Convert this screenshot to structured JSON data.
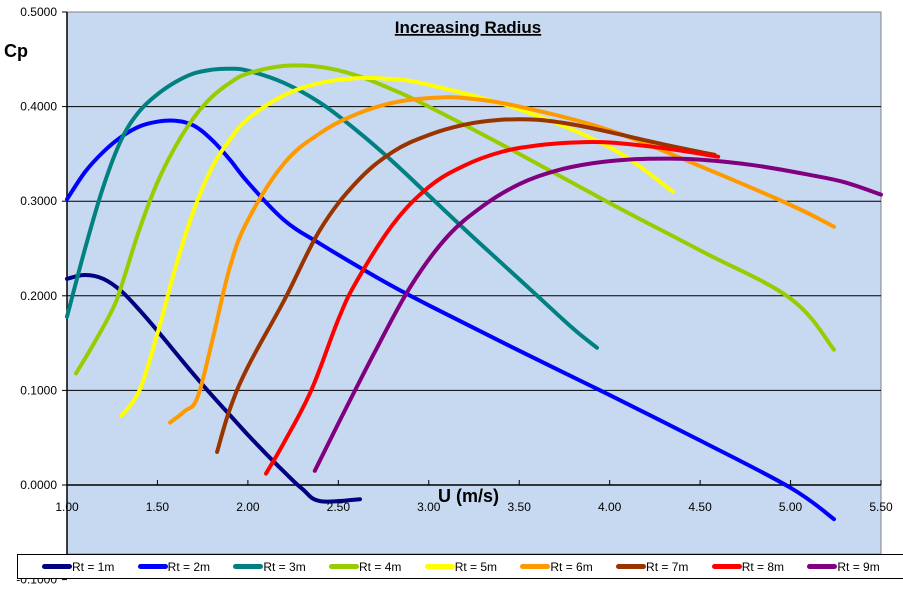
{
  "chart_data": {
    "type": "line",
    "title": "Increasing Radius",
    "xlabel": "U (m/s)",
    "ylabel": "Cp",
    "xlim": [
      1.0,
      5.5
    ],
    "ylim": [
      -0.1,
      0.5
    ],
    "x_ticks": [
      "1.00",
      "1.50",
      "2.00",
      "2.50",
      "3.00",
      "3.50",
      "4.00",
      "4.50",
      "5.00",
      "5.50"
    ],
    "x_tick_values": [
      1.0,
      1.5,
      2.0,
      2.5,
      3.0,
      3.5,
      4.0,
      4.5,
      5.0,
      5.5
    ],
    "y_ticks": [
      "0.5000",
      "0.4000",
      "0.3000",
      "0.2000",
      "0.1000",
      "0.0000",
      "-0.1000"
    ],
    "y_tick_values": [
      0.5,
      0.4,
      0.3,
      0.2,
      0.1,
      0.0,
      -0.1
    ],
    "grid": "horizontal",
    "legend_position": "bottom",
    "series": [
      {
        "name": "Rt = 1m",
        "color": "#000080",
        "points": [
          [
            1.0,
            0.218
          ],
          [
            1.1,
            0.222
          ],
          [
            1.2,
            0.218
          ],
          [
            1.3,
            0.205
          ],
          [
            1.4,
            0.185
          ],
          [
            1.5,
            0.163
          ],
          [
            1.6,
            0.14
          ],
          [
            1.7,
            0.117
          ],
          [
            1.8,
            0.095
          ],
          [
            1.9,
            0.074
          ],
          [
            2.0,
            0.053
          ],
          [
            2.1,
            0.033
          ],
          [
            2.2,
            0.014
          ],
          [
            2.3,
            -0.004
          ],
          [
            2.4,
            -0.017
          ],
          [
            2.62,
            -0.015
          ]
        ]
      },
      {
        "name": "Rt = 2m",
        "color": "#0000FF",
        "points": [
          [
            1.0,
            0.302
          ],
          [
            1.1,
            0.331
          ],
          [
            1.2,
            0.352
          ],
          [
            1.3,
            0.368
          ],
          [
            1.4,
            0.379
          ],
          [
            1.5,
            0.384
          ],
          [
            1.6,
            0.385
          ],
          [
            1.7,
            0.38
          ],
          [
            1.8,
            0.365
          ],
          [
            1.9,
            0.344
          ],
          [
            2.0,
            0.32
          ],
          [
            2.2,
            0.28
          ],
          [
            2.4,
            0.255
          ],
          [
            2.6,
            0.232
          ],
          [
            2.8,
            0.21
          ],
          [
            3.0,
            0.19
          ],
          [
            3.5,
            0.142
          ],
          [
            4.0,
            0.095
          ],
          [
            4.5,
            0.047
          ],
          [
            5.0,
            -0.003
          ],
          [
            5.24,
            -0.036
          ]
        ]
      },
      {
        "name": "Rt = 3m",
        "color": "#008080",
        "points": [
          [
            1.0,
            0.178
          ],
          [
            1.1,
            0.25
          ],
          [
            1.2,
            0.315
          ],
          [
            1.3,
            0.365
          ],
          [
            1.4,
            0.395
          ],
          [
            1.5,
            0.413
          ],
          [
            1.6,
            0.426
          ],
          [
            1.7,
            0.435
          ],
          [
            1.8,
            0.439
          ],
          [
            1.9,
            0.44
          ],
          [
            2.0,
            0.438
          ],
          [
            2.2,
            0.425
          ],
          [
            2.4,
            0.404
          ],
          [
            2.6,
            0.375
          ],
          [
            2.8,
            0.342
          ],
          [
            3.0,
            0.306
          ],
          [
            3.2,
            0.27
          ],
          [
            3.4,
            0.235
          ],
          [
            3.6,
            0.2
          ],
          [
            3.8,
            0.165
          ],
          [
            3.93,
            0.145
          ]
        ]
      },
      {
        "name": "Rt = 4m",
        "color": "#99CC00",
        "points": [
          [
            1.05,
            0.118
          ],
          [
            1.15,
            0.15
          ],
          [
            1.25,
            0.185
          ],
          [
            1.3,
            0.21
          ],
          [
            1.4,
            0.27
          ],
          [
            1.5,
            0.32
          ],
          [
            1.6,
            0.358
          ],
          [
            1.7,
            0.388
          ],
          [
            1.8,
            0.41
          ],
          [
            1.9,
            0.425
          ],
          [
            2.0,
            0.435
          ],
          [
            2.2,
            0.443
          ],
          [
            2.4,
            0.442
          ],
          [
            2.6,
            0.433
          ],
          [
            2.8,
            0.418
          ],
          [
            3.0,
            0.4
          ],
          [
            3.5,
            0.35
          ],
          [
            4.0,
            0.298
          ],
          [
            4.5,
            0.248
          ],
          [
            5.0,
            0.197
          ],
          [
            5.24,
            0.143
          ]
        ]
      },
      {
        "name": "Rt = 5m",
        "color": "#FFFF00",
        "points": [
          [
            1.3,
            0.073
          ],
          [
            1.4,
            0.1
          ],
          [
            1.5,
            0.16
          ],
          [
            1.6,
            0.23
          ],
          [
            1.7,
            0.29
          ],
          [
            1.8,
            0.335
          ],
          [
            1.9,
            0.365
          ],
          [
            2.0,
            0.387
          ],
          [
            2.2,
            0.412
          ],
          [
            2.4,
            0.425
          ],
          [
            2.6,
            0.43
          ],
          [
            2.8,
            0.429
          ],
          [
            3.0,
            0.423
          ],
          [
            3.5,
            0.397
          ],
          [
            4.0,
            0.357
          ],
          [
            4.35,
            0.31
          ]
        ]
      },
      {
        "name": "Rt = 6m",
        "color": "#FF9900",
        "points": [
          [
            1.57,
            0.066
          ],
          [
            1.65,
            0.078
          ],
          [
            1.72,
            0.092
          ],
          [
            1.8,
            0.15
          ],
          [
            1.9,
            0.23
          ],
          [
            2.0,
            0.28
          ],
          [
            2.2,
            0.34
          ],
          [
            2.4,
            0.372
          ],
          [
            2.6,
            0.392
          ],
          [
            2.8,
            0.404
          ],
          [
            3.0,
            0.409
          ],
          [
            3.2,
            0.409
          ],
          [
            3.5,
            0.4
          ],
          [
            4.0,
            0.375
          ],
          [
            4.5,
            0.337
          ],
          [
            5.0,
            0.296
          ],
          [
            5.24,
            0.273
          ]
        ]
      },
      {
        "name": "Rt = 7m",
        "color": "#993300",
        "points": [
          [
            1.83,
            0.035
          ],
          [
            1.9,
            0.08
          ],
          [
            2.0,
            0.125
          ],
          [
            2.2,
            0.195
          ],
          [
            2.4,
            0.27
          ],
          [
            2.6,
            0.32
          ],
          [
            2.8,
            0.352
          ],
          [
            3.0,
            0.37
          ],
          [
            3.2,
            0.381
          ],
          [
            3.4,
            0.386
          ],
          [
            3.6,
            0.386
          ],
          [
            3.8,
            0.381
          ],
          [
            4.0,
            0.373
          ],
          [
            4.3,
            0.36
          ],
          [
            4.58,
            0.349
          ]
        ]
      },
      {
        "name": "Rt = 8m",
        "color": "#FF0000",
        "points": [
          [
            2.1,
            0.012
          ],
          [
            2.2,
            0.045
          ],
          [
            2.35,
            0.1
          ],
          [
            2.5,
            0.175
          ],
          [
            2.6,
            0.215
          ],
          [
            2.8,
            0.275
          ],
          [
            3.0,
            0.315
          ],
          [
            3.2,
            0.338
          ],
          [
            3.4,
            0.352
          ],
          [
            3.6,
            0.359
          ],
          [
            3.8,
            0.362
          ],
          [
            4.0,
            0.362
          ],
          [
            4.3,
            0.356
          ],
          [
            4.6,
            0.347
          ]
        ]
      },
      {
        "name": "Rt = 9m",
        "color": "#800080",
        "points": [
          [
            2.37,
            0.015
          ],
          [
            2.5,
            0.065
          ],
          [
            2.7,
            0.14
          ],
          [
            2.9,
            0.21
          ],
          [
            3.1,
            0.262
          ],
          [
            3.3,
            0.295
          ],
          [
            3.5,
            0.318
          ],
          [
            3.7,
            0.332
          ],
          [
            3.9,
            0.34
          ],
          [
            4.1,
            0.344
          ],
          [
            4.3,
            0.345
          ],
          [
            4.5,
            0.344
          ],
          [
            4.8,
            0.338
          ],
          [
            5.1,
            0.328
          ],
          [
            5.3,
            0.32
          ],
          [
            5.5,
            0.307
          ]
        ]
      }
    ]
  }
}
